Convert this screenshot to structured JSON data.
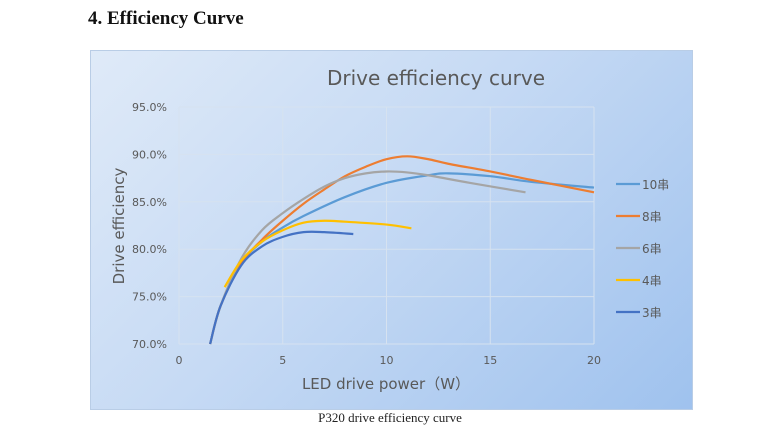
{
  "heading": "4. Efficiency Curve",
  "caption": "P320 drive efficiency curve",
  "chart_data": {
    "type": "line",
    "title": "Drive efficiency curve",
    "xlabel": "LED drive power（W）",
    "ylabel": "Drive efficiency",
    "xlim": [
      0,
      20
    ],
    "ylim": [
      70,
      95
    ],
    "x_ticks": [
      "0",
      "5",
      "10",
      "15",
      "20"
    ],
    "y_ticks": [
      "70.0%",
      "75.0%",
      "80.0%",
      "85.0%",
      "90.0%",
      "95.0%"
    ],
    "grid": true,
    "legend": "right",
    "series": [
      {
        "name": "10串",
        "color": "#5b9bd5",
        "points": [
          [
            1.5,
            70
          ],
          [
            2,
            74
          ],
          [
            3,
            78.5
          ],
          [
            4,
            80.8
          ],
          [
            5,
            82.3
          ],
          [
            6,
            83.5
          ],
          [
            8,
            85.5
          ],
          [
            10,
            87
          ],
          [
            12,
            87.8
          ],
          [
            13,
            88
          ],
          [
            15,
            87.7
          ],
          [
            17,
            87.1
          ],
          [
            20,
            86.5
          ]
        ]
      },
      {
        "name": "8串",
        "color": "#ed7d31",
        "points": [
          [
            1.5,
            70
          ],
          [
            2,
            74
          ],
          [
            3,
            78.5
          ],
          [
            4,
            81
          ],
          [
            5,
            83
          ],
          [
            6,
            84.8
          ],
          [
            7,
            86.3
          ],
          [
            8,
            87.7
          ],
          [
            9,
            88.7
          ],
          [
            10,
            89.5
          ],
          [
            11,
            89.8
          ],
          [
            12,
            89.5
          ],
          [
            13,
            89
          ],
          [
            15,
            88.2
          ],
          [
            17,
            87.3
          ],
          [
            20,
            86
          ]
        ]
      },
      {
        "name": "6串",
        "color": "#a5a5a5",
        "points": [
          [
            1.5,
            70
          ],
          [
            2,
            74
          ],
          [
            3,
            79
          ],
          [
            4,
            82
          ],
          [
            5,
            83.8
          ],
          [
            6,
            85.3
          ],
          [
            7,
            86.6
          ],
          [
            8,
            87.5
          ],
          [
            9,
            88
          ],
          [
            10,
            88.2
          ],
          [
            11,
            88.1
          ],
          [
            12,
            87.8
          ],
          [
            14,
            87
          ],
          [
            16.7,
            86
          ]
        ]
      },
      {
        "name": "4串",
        "color": "#ffc000",
        "points": [
          [
            2.2,
            76
          ],
          [
            3,
            78.8
          ],
          [
            4,
            80.8
          ],
          [
            5,
            82
          ],
          [
            6,
            82.8
          ],
          [
            7,
            83
          ],
          [
            8,
            82.9
          ],
          [
            10,
            82.6
          ],
          [
            11.2,
            82.2
          ]
        ]
      },
      {
        "name": "3串",
        "color": "#4472c4",
        "points": [
          [
            1.5,
            70
          ],
          [
            2,
            74
          ],
          [
            3,
            78.3
          ],
          [
            4,
            80.3
          ],
          [
            5,
            81.3
          ],
          [
            6,
            81.8
          ],
          [
            7,
            81.8
          ],
          [
            8.4,
            81.6
          ]
        ]
      }
    ]
  }
}
